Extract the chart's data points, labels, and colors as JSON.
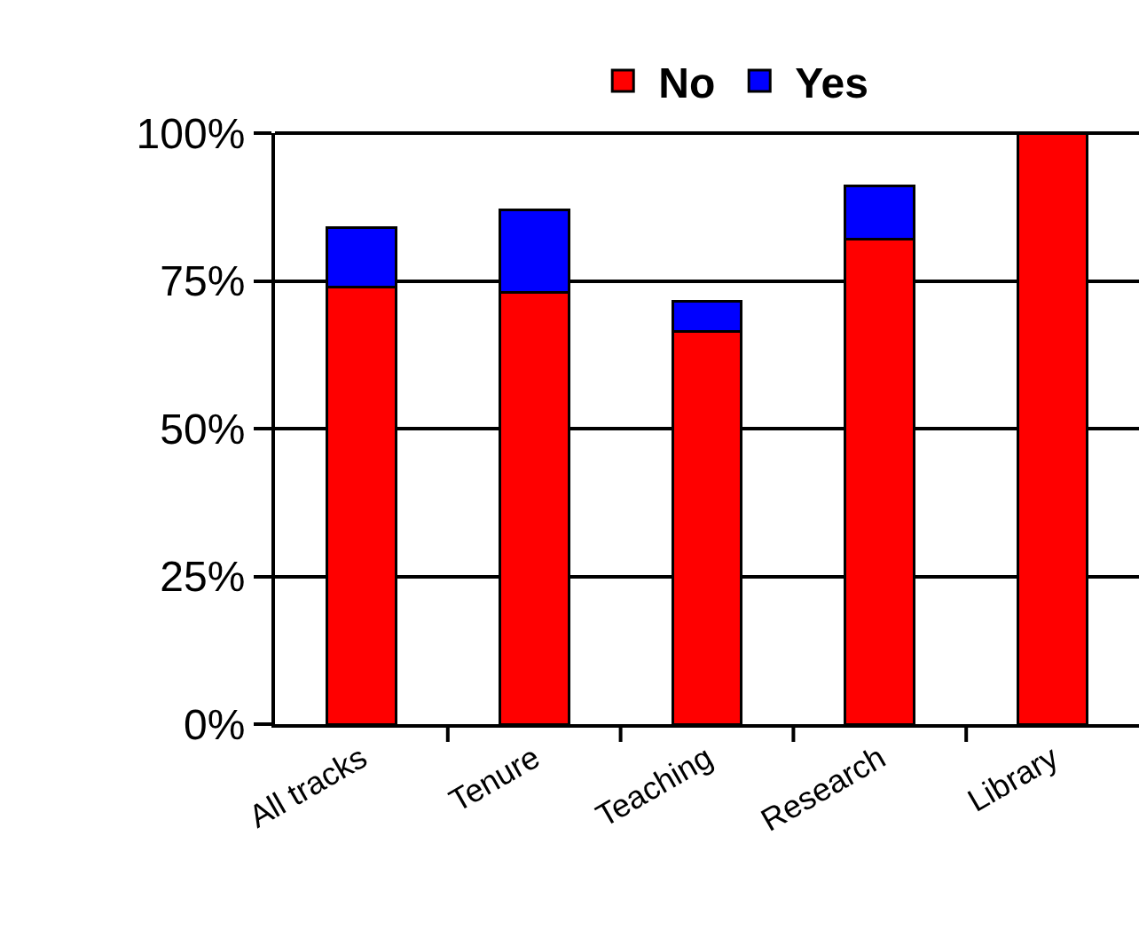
{
  "chart_data": {
    "type": "bar",
    "stacked": true,
    "categories": [
      "All tracks",
      "Tenure",
      "Teaching",
      "Research",
      "Library"
    ],
    "series": [
      {
        "name": "No",
        "color": "#ff0000",
        "values": [
          74,
          73,
          66.5,
          82,
          100
        ]
      },
      {
        "name": "Yes",
        "color": "#0000ff",
        "values": [
          10,
          14,
          5,
          9,
          null
        ]
      }
    ],
    "ylim": [
      0,
      100
    ],
    "yticks": [
      {
        "value": 0,
        "label": "0%"
      },
      {
        "value": 25,
        "label": "25%"
      },
      {
        "value": 50,
        "label": "50%"
      },
      {
        "value": 75,
        "label": "75%"
      },
      {
        "value": 100,
        "label": "100%"
      }
    ],
    "grid": "y",
    "legend": "top"
  }
}
